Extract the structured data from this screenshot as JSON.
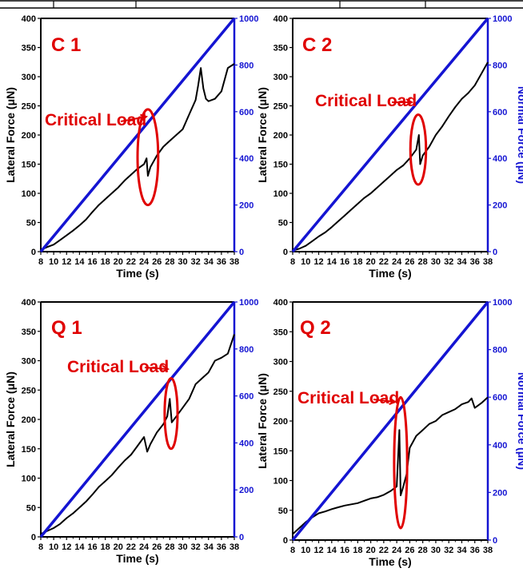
{
  "chart_data": [
    {
      "type": "line",
      "panel_label": "C 1",
      "annotation": "Critical Load",
      "xlabel": "Time (s)",
      "ylabel": "Lateral Force (μN)",
      "y2label": "",
      "xlim": [
        8,
        38
      ],
      "ylim": [
        0,
        400
      ],
      "y2lim": [
        0,
        1000
      ],
      "x_ticks": [
        "8",
        "10",
        "12",
        "14",
        "16",
        "18",
        "20",
        "22",
        "24",
        "26",
        "28",
        "30",
        "32",
        "34",
        "36",
        "38"
      ],
      "y_ticks": [
        "0",
        "50",
        "100",
        "150",
        "200",
        "250",
        "300",
        "350",
        "400"
      ],
      "y2_ticks": [
        "0",
        "200",
        "400",
        "600",
        "800",
        "1000"
      ],
      "colors": {
        "lateral": "#000000",
        "normal": "#1414d2",
        "y2axis": "#1414d2",
        "annotation": "#e00000"
      },
      "critical_ellipse": {
        "x": 24.6,
        "y": 162,
        "rx": 1.6,
        "ry": 82
      },
      "series": [
        {
          "axis": "left",
          "x": [
            8,
            9,
            10,
            11,
            12,
            13,
            14,
            15,
            16,
            17,
            18,
            19,
            20,
            21,
            22,
            23,
            24,
            24.4,
            24.6,
            25,
            26,
            27,
            28,
            29,
            30,
            31,
            32,
            32.4,
            32.8,
            33.2,
            33.6,
            34,
            35,
            36,
            37,
            38
          ],
          "y": [
            3,
            8,
            12,
            20,
            28,
            36,
            45,
            55,
            68,
            80,
            90,
            100,
            110,
            122,
            132,
            142,
            150,
            160,
            130,
            145,
            165,
            180,
            190,
            200,
            210,
            235,
            260,
            285,
            315,
            280,
            262,
            258,
            262,
            275,
            315,
            322
          ]
        },
        {
          "axis": "right",
          "x": [
            8,
            38
          ],
          "y": [
            0,
            1000
          ]
        }
      ]
    },
    {
      "type": "line",
      "panel_label": "C 2",
      "annotation": "Critical Load",
      "xlabel": "Time (s)",
      "ylabel": "Lateral Force (μN)",
      "y2label": "Normal Force (μN)",
      "xlim": [
        8,
        38
      ],
      "ylim": [
        0,
        400
      ],
      "y2lim": [
        0,
        1000
      ],
      "x_ticks": [
        "8",
        "10",
        "12",
        "14",
        "16",
        "18",
        "20",
        "22",
        "24",
        "26",
        "28",
        "30",
        "32",
        "34",
        "36",
        "38"
      ],
      "y_ticks": [
        "0",
        "50",
        "100",
        "150",
        "200",
        "250",
        "300",
        "350",
        "400"
      ],
      "y2_ticks": [
        "0",
        "200",
        "400",
        "600",
        "800",
        "1000"
      ],
      "colors": {
        "lateral": "#000000",
        "normal": "#1414d2",
        "y2axis": "#1414d2",
        "annotation": "#e00000"
      },
      "critical_ellipse": {
        "x": 27.3,
        "y": 175,
        "rx": 1.2,
        "ry": 60
      },
      "series": [
        {
          "axis": "left",
          "x": [
            8,
            9,
            10,
            11,
            12,
            13,
            14,
            15,
            16,
            17,
            18,
            19,
            20,
            21,
            22,
            23,
            24,
            25,
            26,
            27,
            27.4,
            27.6,
            28,
            29,
            30,
            31,
            32,
            33,
            34,
            35,
            36,
            37,
            38
          ],
          "y": [
            2,
            5,
            10,
            18,
            26,
            33,
            42,
            52,
            62,
            72,
            82,
            92,
            100,
            110,
            120,
            130,
            140,
            148,
            160,
            175,
            200,
            150,
            165,
            180,
            200,
            215,
            232,
            248,
            262,
            272,
            285,
            305,
            325
          ]
        },
        {
          "axis": "right",
          "x": [
            8,
            38
          ],
          "y": [
            0,
            1000
          ]
        }
      ]
    },
    {
      "type": "line",
      "panel_label": "Q 1",
      "annotation": "Critical Load",
      "xlabel": "Time (s)",
      "ylabel": "Lateral Force (μN)",
      "y2label": "",
      "xlim": [
        8,
        38
      ],
      "ylim": [
        0,
        400
      ],
      "y2lim": [
        0,
        1000
      ],
      "x_ticks": [
        "8",
        "10",
        "12",
        "14",
        "16",
        "18",
        "20",
        "22",
        "24",
        "26",
        "28",
        "30",
        "32",
        "34",
        "36",
        "38"
      ],
      "y_ticks": [
        "0",
        "50",
        "100",
        "150",
        "200",
        "250",
        "300",
        "350",
        "400"
      ],
      "y2_ticks": [
        "0",
        "200",
        "400",
        "600",
        "800",
        "1000"
      ],
      "colors": {
        "lateral": "#000000",
        "normal": "#1414d2",
        "y2axis": "#1414d2",
        "annotation": "#e00000"
      },
      "critical_ellipse": {
        "x": 28.2,
        "y": 210,
        "rx": 1.0,
        "ry": 60
      },
      "series": [
        {
          "axis": "left",
          "x": [
            8,
            9,
            10,
            11,
            12,
            13,
            14,
            15,
            16,
            17,
            18,
            19,
            20,
            21,
            22,
            23,
            24,
            24.5,
            25,
            26,
            27,
            27.6,
            28,
            28.3,
            29,
            30,
            31,
            32,
            33,
            34,
            35,
            36,
            37,
            38
          ],
          "y": [
            5,
            10,
            15,
            22,
            32,
            40,
            50,
            60,
            72,
            85,
            95,
            105,
            118,
            130,
            140,
            155,
            170,
            145,
            158,
            178,
            192,
            205,
            235,
            195,
            205,
            220,
            235,
            260,
            270,
            280,
            300,
            305,
            312,
            345
          ]
        },
        {
          "axis": "right",
          "x": [
            8,
            38
          ],
          "y": [
            0,
            1000
          ]
        }
      ]
    },
    {
      "type": "line",
      "panel_label": "Q 2",
      "annotation": "Critical Load",
      "xlabel": "Time (s)",
      "ylabel": "Lateral Force (μN)",
      "y2label": "Normal Force (μN)",
      "xlim": [
        8,
        38
      ],
      "ylim": [
        0,
        400
      ],
      "y2lim": [
        0,
        1000
      ],
      "x_ticks": [
        "8",
        "10",
        "12",
        "14",
        "16",
        "18",
        "20",
        "22",
        "24",
        "26",
        "28",
        "30",
        "32",
        "34",
        "36",
        "38"
      ],
      "y_ticks": [
        "0",
        "50",
        "100",
        "150",
        "200",
        "250",
        "300",
        "350",
        "400"
      ],
      "y2_ticks": [
        "0",
        "200",
        "400",
        "600",
        "800",
        "1000"
      ],
      "colors": {
        "lateral": "#000000",
        "normal": "#1414d2",
        "y2axis": "#1414d2",
        "annotation": "#e00000"
      },
      "critical_ellipse": {
        "x": 24.6,
        "y": 130,
        "rx": 1.0,
        "ry": 110
      },
      "series": [
        {
          "axis": "left",
          "x": [
            8,
            9,
            10,
            11,
            12,
            13,
            14,
            15,
            16,
            17,
            18,
            19,
            20,
            21,
            22,
            23,
            24,
            24.4,
            24.6,
            25,
            25.5,
            26,
            27,
            28,
            29,
            30,
            31,
            32,
            33,
            34,
            35,
            35.5,
            36,
            37,
            38
          ],
          "y": [
            10,
            20,
            30,
            38,
            45,
            48,
            52,
            55,
            58,
            60,
            62,
            66,
            70,
            72,
            76,
            82,
            90,
            185,
            75,
            90,
            110,
            155,
            175,
            185,
            195,
            200,
            210,
            215,
            220,
            228,
            232,
            238,
            222,
            230,
            240
          ]
        },
        {
          "axis": "right",
          "x": [
            8,
            38
          ],
          "y": [
            0,
            1000
          ]
        }
      ]
    }
  ]
}
